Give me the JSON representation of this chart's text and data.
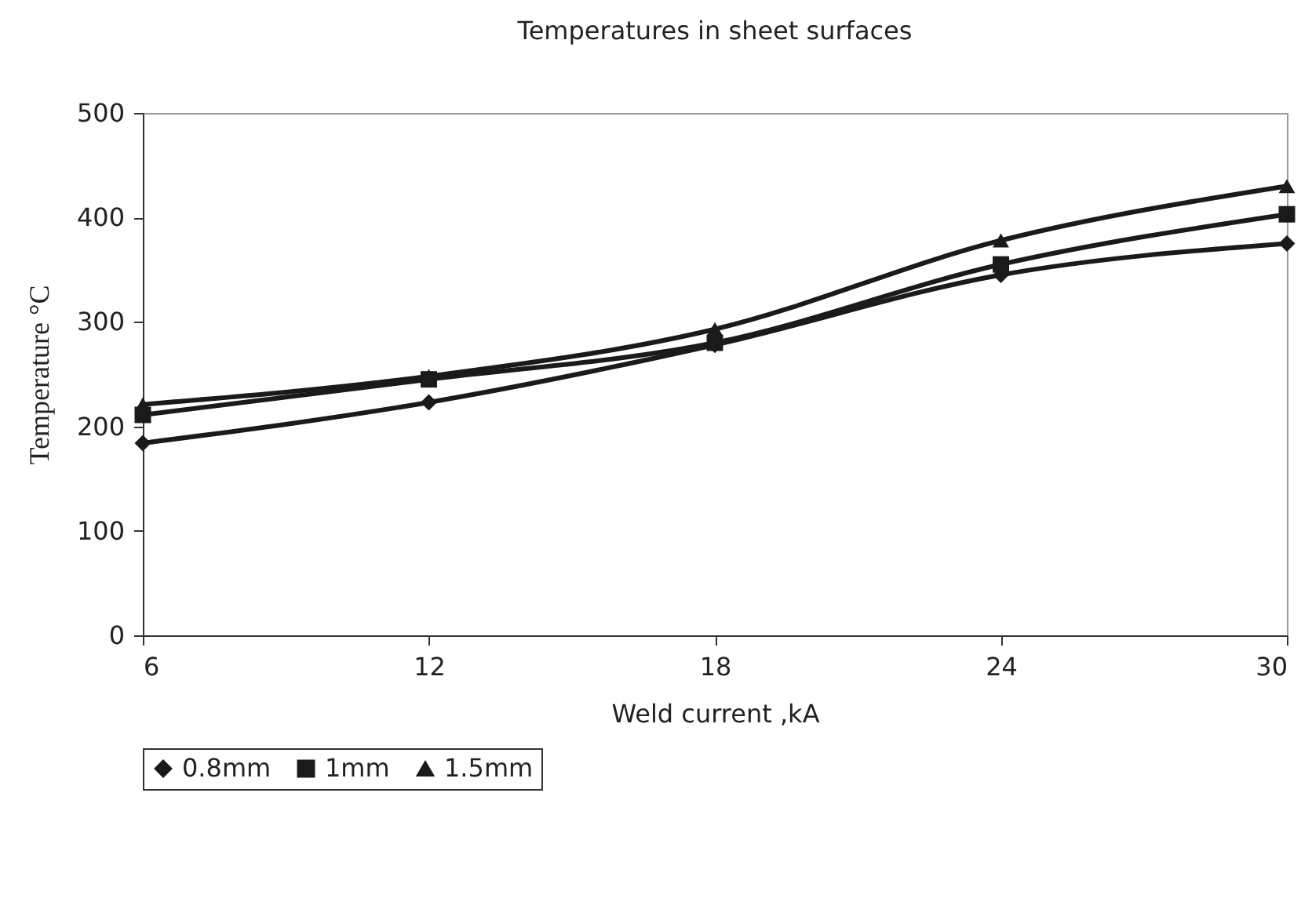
{
  "chart_data": {
    "type": "line",
    "title": "Temperatures in sheet surfaces",
    "xlabel": "Weld current ,kA",
    "ylabel": "Temperature °C",
    "x": [
      6,
      12,
      18,
      24,
      30
    ],
    "series": [
      {
        "name": "0.8mm",
        "color": "#1a1a1a",
        "marker": "diamond",
        "values": [
          184,
          223,
          278,
          345,
          375
        ]
      },
      {
        "name": "1mm",
        "color": "#1a1a1a",
        "marker": "square",
        "values": [
          211,
          245,
          280,
          355,
          403
        ]
      },
      {
        "name": "1.5mm",
        "color": "#1a1a1a",
        "marker": "triangle",
        "values": [
          221,
          248,
          293,
          378,
          430
        ]
      }
    ],
    "xlim": [
      6,
      30
    ],
    "xticks": [
      6,
      12,
      18,
      24,
      30
    ],
    "ylim": [
      0,
      500
    ],
    "yticks": [
      0,
      100,
      200,
      300,
      400,
      500
    ],
    "grid": false,
    "legend": "bottom",
    "line_style": "solid"
  }
}
